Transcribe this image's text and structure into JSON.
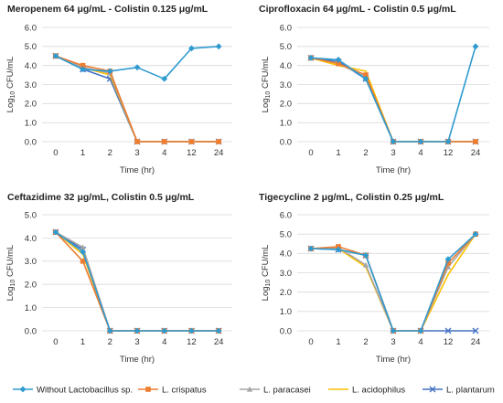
{
  "chart_data": [
    {
      "type": "line",
      "title": "Meropenem 64 μg/mL - Colistin 0.125 μg/mL",
      "xlabel": "Time (hr)",
      "ylabel": "Log10 CFU/mL",
      "categories": [
        "0",
        "1",
        "2",
        "3",
        "4",
        "12",
        "24"
      ],
      "ylim": [
        0,
        6
      ],
      "yticks": [
        "0.0",
        "1.0",
        "2.0",
        "3.0",
        "4.0",
        "5.0",
        "6.0"
      ],
      "series": [
        {
          "name": "Without Lactobacillus sp.",
          "values": [
            4.5,
            3.8,
            3.7,
            3.9,
            3.3,
            4.9,
            5.0
          ]
        },
        {
          "name": "L. crispatus",
          "values": [
            4.5,
            4.0,
            3.7,
            0,
            0,
            0,
            0
          ]
        },
        {
          "name": "L. paracasei",
          "values": [
            4.5,
            3.9,
            3.6,
            0,
            0,
            0,
            0
          ]
        },
        {
          "name": "L. acidophilus",
          "values": [
            4.5,
            3.9,
            3.5,
            0,
            0,
            0,
            0
          ]
        },
        {
          "name": "L. plantarum",
          "values": [
            4.5,
            3.8,
            3.3,
            0,
            0,
            0,
            0
          ]
        }
      ]
    },
    {
      "type": "line",
      "title": "Ciprofloxacin 64 μg/mL - Colistin 0.5 μg/mL",
      "xlabel": "Time (hr)",
      "ylabel": "Log10 CFU/mL",
      "categories": [
        "0",
        "1",
        "2",
        "3",
        "4",
        "12",
        "24"
      ],
      "ylim": [
        0,
        6
      ],
      "yticks": [
        "0.0",
        "1.0",
        "2.0",
        "3.0",
        "4.0",
        "5.0",
        "6.0"
      ],
      "series": [
        {
          "name": "Without Lactobacillus sp.",
          "values": [
            4.4,
            4.3,
            3.3,
            0,
            0,
            0,
            5.0
          ]
        },
        {
          "name": "L. crispatus",
          "values": [
            4.4,
            4.1,
            3.5,
            0,
            0,
            0,
            0
          ]
        },
        {
          "name": "L. paracasei",
          "values": [
            4.4,
            4.1,
            3.4,
            0,
            0,
            0,
            0
          ]
        },
        {
          "name": "L. acidophilus",
          "values": [
            4.4,
            4.0,
            3.7,
            0,
            0,
            0,
            0
          ]
        },
        {
          "name": "L. plantarum",
          "values": [
            4.4,
            4.2,
            3.3,
            0,
            0,
            0,
            0
          ]
        }
      ]
    },
    {
      "type": "line",
      "title": "Ceftazidime 32 μg/mL, Colistin 0.5 μg/mL",
      "xlabel": "Time (hr)",
      "ylabel": "Log10 CFU/mL",
      "categories": [
        "0",
        "1",
        "2",
        "3",
        "4",
        "12",
        "24"
      ],
      "ylim": [
        0,
        5
      ],
      "yticks": [
        "0.0",
        "1.0",
        "2.0",
        "3.0",
        "4.0",
        "5.0"
      ],
      "series": [
        {
          "name": "Without Lactobacillus sp.",
          "values": [
            4.25,
            3.4,
            0,
            0,
            0,
            0,
            0
          ]
        },
        {
          "name": "L. crispatus",
          "values": [
            4.25,
            3.0,
            0,
            0,
            0,
            0,
            0
          ]
        },
        {
          "name": "L. paracasei",
          "values": [
            4.25,
            3.6,
            0,
            0,
            0,
            0,
            0
          ]
        },
        {
          "name": "L. acidophilus",
          "values": [
            4.25,
            3.3,
            0,
            0,
            0,
            0,
            0
          ]
        },
        {
          "name": "L. plantarum",
          "values": [
            4.25,
            3.5,
            0,
            0,
            0,
            0,
            0
          ]
        }
      ]
    },
    {
      "type": "line",
      "title": "Tigecycline 2 μg/mL, Colistin 0.25 μg/mL",
      "xlabel": "Time (hr)",
      "ylabel": "Log10 CFU/mL",
      "categories": [
        "0",
        "1",
        "2",
        "3",
        "4",
        "12",
        "24"
      ],
      "ylim": [
        0,
        6
      ],
      "yticks": [
        "0.0",
        "1.0",
        "2.0",
        "3.0",
        "4.0",
        "5.0",
        "6.0"
      ],
      "series": [
        {
          "name": "Without Lactobacillus sp.",
          "values": [
            4.25,
            4.2,
            3.9,
            0,
            0,
            3.7,
            5.0
          ]
        },
        {
          "name": "L. crispatus",
          "values": [
            4.25,
            4.35,
            3.9,
            0,
            0,
            3.5,
            5.0
          ]
        },
        {
          "name": "L. paracasei",
          "values": [
            4.25,
            4.3,
            3.4,
            0,
            0,
            3.3,
            5.0
          ]
        },
        {
          "name": "L. acidophilus",
          "values": [
            4.25,
            4.25,
            3.3,
            0,
            0,
            2.9,
            5.0
          ]
        },
        {
          "name": "L. plantarum",
          "values": [
            4.25,
            4.2,
            3.9,
            0,
            0,
            0,
            0
          ]
        }
      ]
    }
  ],
  "legend": {
    "position": "bottom",
    "items": [
      {
        "label": "Without Lactobacillus sp.",
        "color": "#2E9BD0",
        "marker": "diamond"
      },
      {
        "label": "L. crispatus",
        "color": "#ED7D31",
        "marker": "square"
      },
      {
        "label": "L. paracasei",
        "color": "#A5A5A5",
        "marker": "triangle"
      },
      {
        "label": "L. acidophilus",
        "color": "#FFC000",
        "marker": "none"
      },
      {
        "label": "L. plantarum",
        "color": "#4472C4",
        "marker": "x"
      }
    ]
  }
}
